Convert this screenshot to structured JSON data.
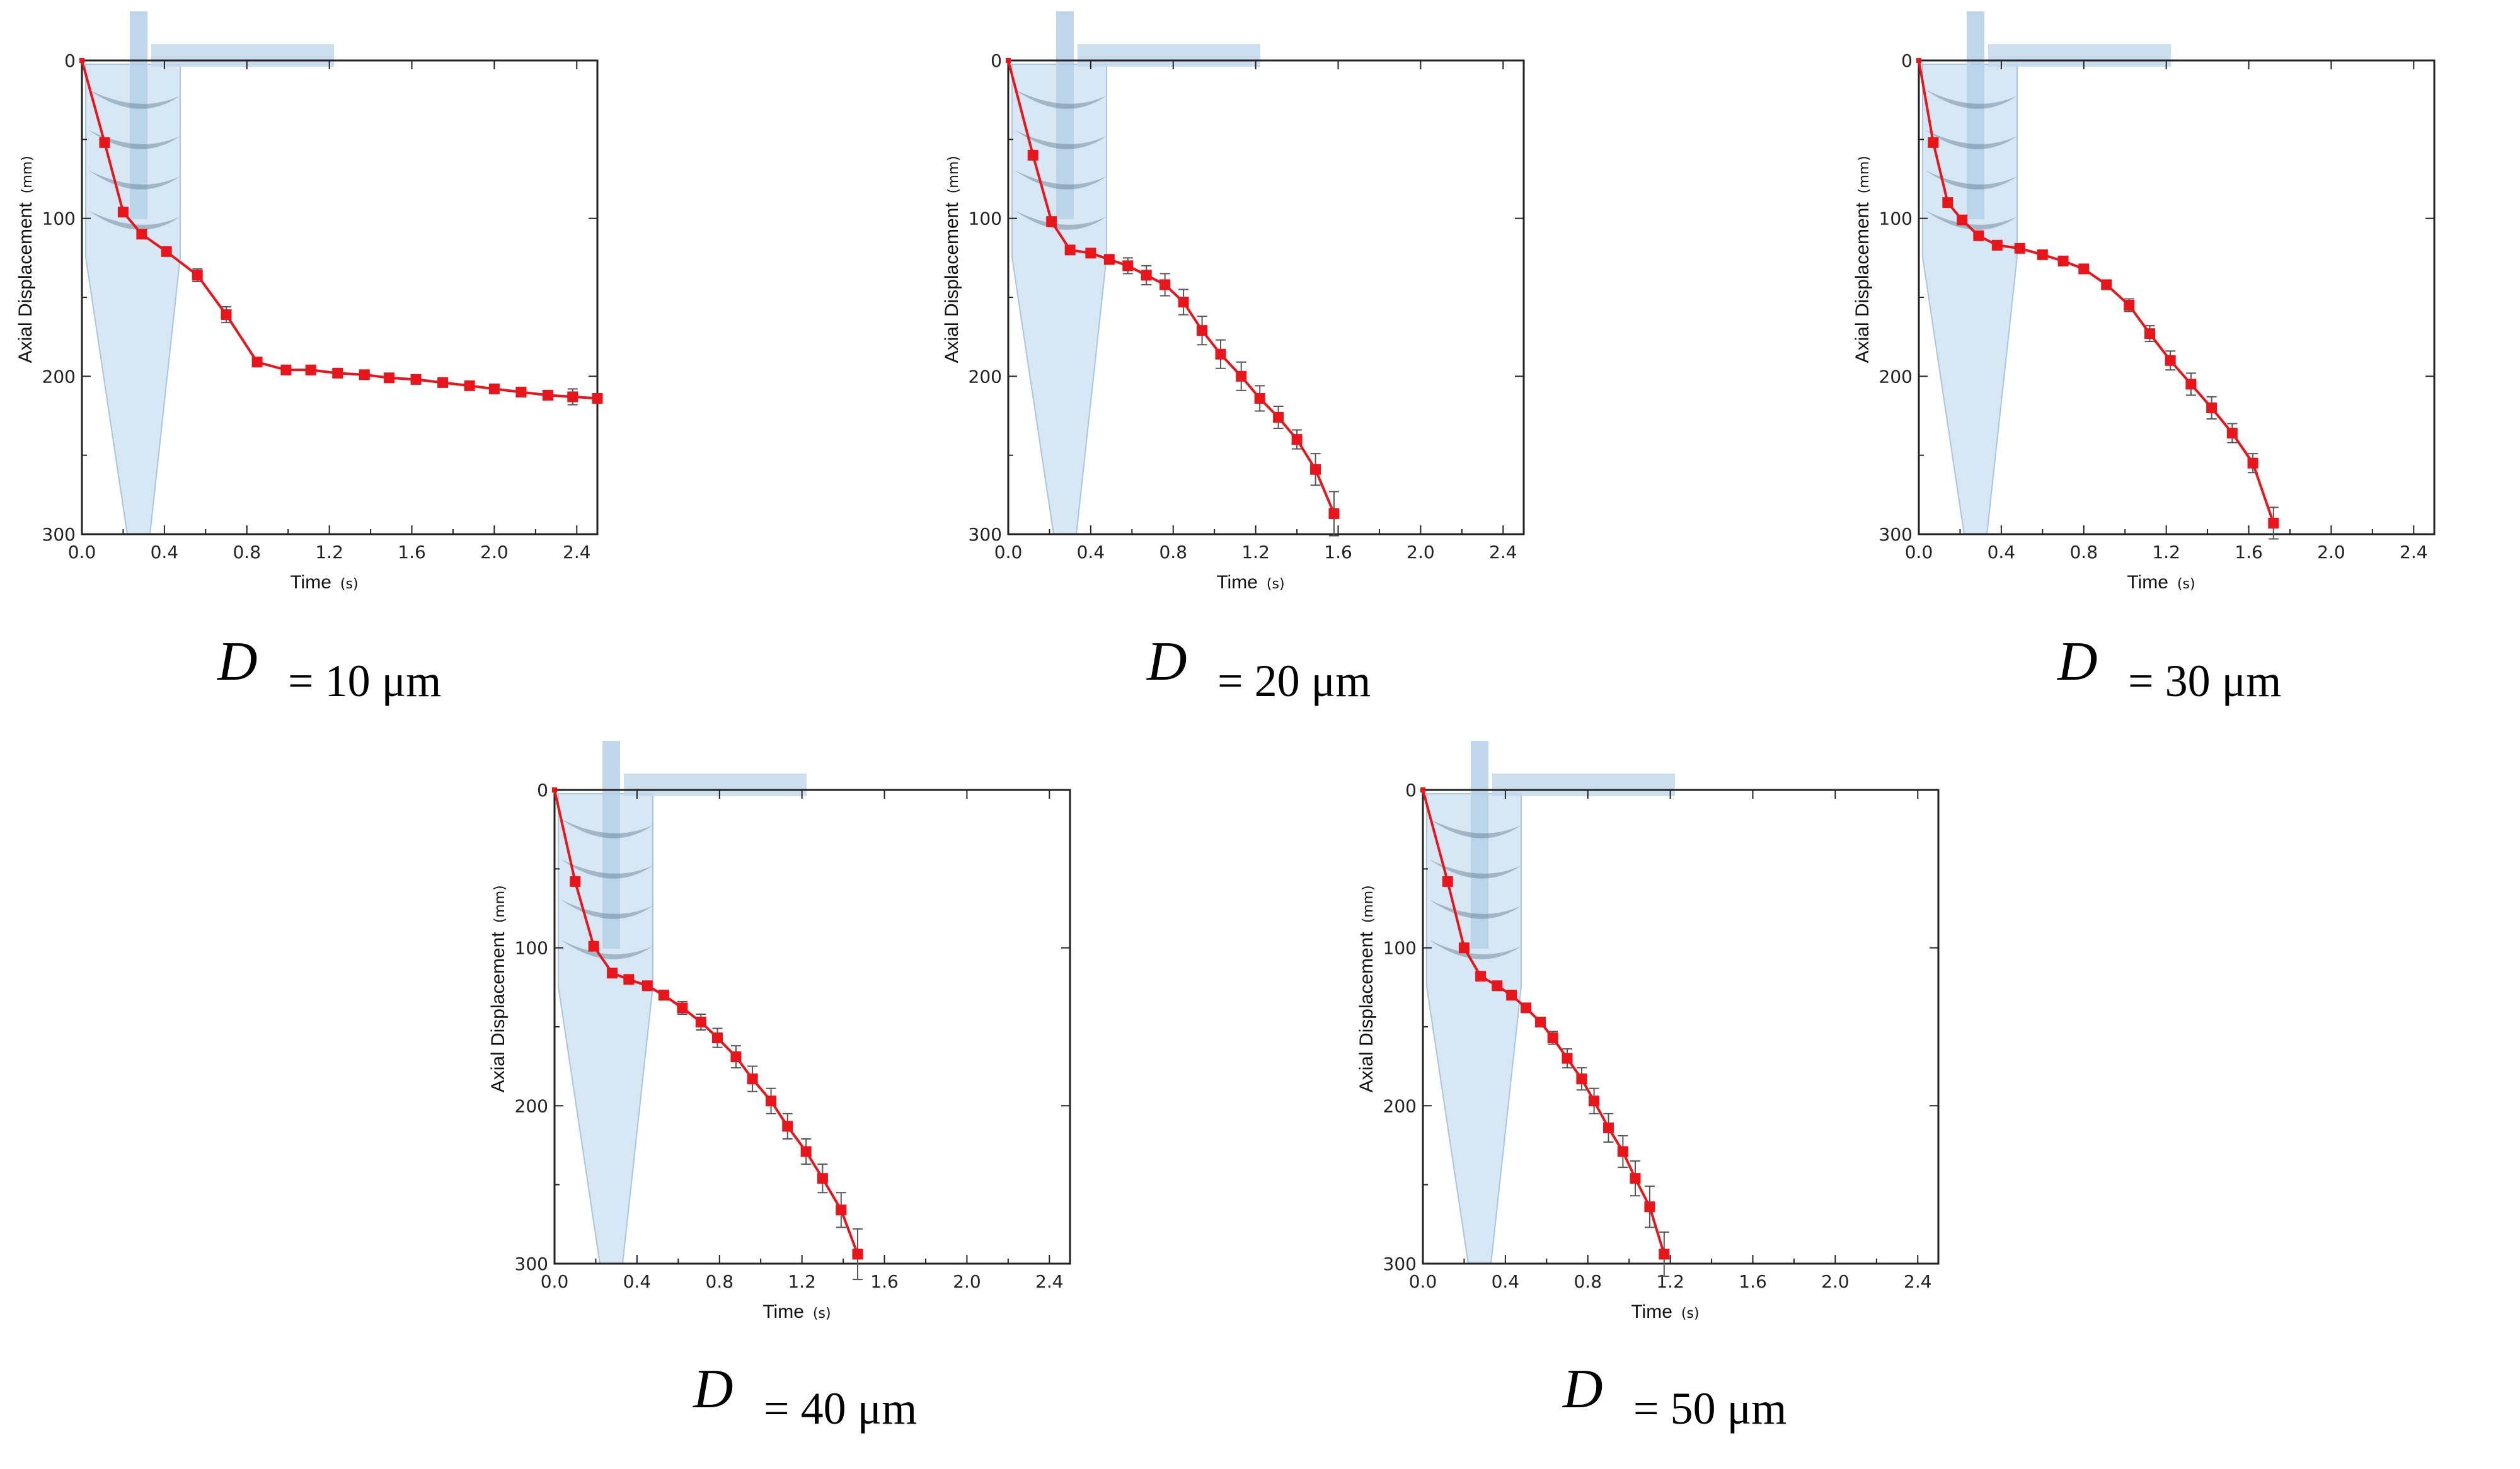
{
  "caption_symbol": "D",
  "chart_data": [
    {
      "type": "line",
      "caption": "= 10 μm",
      "xlabel": "Time",
      "xunit": "(s)",
      "ylabel": "Axial Displacement",
      "yunit": "(mm)",
      "xlim": [
        0,
        2.5
      ],
      "ylim": [
        0,
        300
      ],
      "y_inverted": true,
      "xticks": [
        0,
        0.4,
        0.8,
        1.2,
        1.6,
        2.0,
        2.4
      ],
      "xtick_labels": [
        "0.0",
        "0.4",
        "0.8",
        "1.2",
        "1.6",
        "2.0",
        "2.4"
      ],
      "yticks": [
        0,
        100,
        200,
        300
      ],
      "ytick_labels": [
        "0",
        "100",
        "200",
        "300"
      ],
      "series_color": "#e8161b",
      "x": [
        0,
        0.11,
        0.2,
        0.29,
        0.41,
        0.56,
        0.7,
        0.85,
        0.99,
        1.11,
        1.24,
        1.37,
        1.49,
        1.62,
        1.75,
        1.88,
        2.0,
        2.13,
        2.26,
        2.38,
        2.5
      ],
      "y": [
        0,
        52,
        96,
        110,
        121,
        136,
        161,
        191,
        196,
        196,
        198,
        199,
        201,
        202,
        204,
        206,
        208,
        210,
        212,
        213,
        214
      ],
      "err": [
        0,
        0,
        0,
        0,
        2,
        4,
        5,
        0,
        0,
        0,
        0,
        0,
        0,
        0,
        0,
        0,
        0,
        0,
        0,
        5,
        2
      ]
    },
    {
      "type": "line",
      "caption": "= 20 μm",
      "xlabel": "Time",
      "xunit": "(s)",
      "ylabel": "Axial Displacement",
      "yunit": "(mm)",
      "xlim": [
        0,
        2.5
      ],
      "ylim": [
        0,
        300
      ],
      "y_inverted": true,
      "xticks": [
        0,
        0.4,
        0.8,
        1.2,
        1.6,
        2.0,
        2.4
      ],
      "xtick_labels": [
        "0.0",
        "0.4",
        "0.8",
        "1.2",
        "1.6",
        "2.0",
        "2.4"
      ],
      "yticks": [
        0,
        100,
        200,
        300
      ],
      "ytick_labels": [
        "0",
        "100",
        "200",
        "300"
      ],
      "series_color": "#e8161b",
      "x": [
        0,
        0.12,
        0.21,
        0.3,
        0.4,
        0.49,
        0.58,
        0.67,
        0.76,
        0.85,
        0.94,
        1.03,
        1.13,
        1.22,
        1.31,
        1.4,
        1.49,
        1.58
      ],
      "y": [
        0,
        60,
        102,
        120,
        122,
        126,
        130,
        136,
        142,
        153,
        171,
        186,
        200,
        214,
        226,
        240,
        259,
        287
      ],
      "err": [
        0,
        0,
        0,
        0,
        0,
        3,
        5,
        6,
        7,
        8,
        9,
        9,
        9,
        8,
        7,
        6,
        10,
        14
      ]
    },
    {
      "type": "line",
      "caption": "= 30 μm",
      "xlabel": "Time",
      "xunit": "(s)",
      "ylabel": "Axial Displacement",
      "yunit": "(mm)",
      "xlim": [
        0,
        2.5
      ],
      "ylim": [
        0,
        300
      ],
      "y_inverted": true,
      "xticks": [
        0,
        0.4,
        0.8,
        1.2,
        1.6,
        2.0,
        2.4
      ],
      "xtick_labels": [
        "0.0",
        "0.4",
        "0.8",
        "1.2",
        "1.6",
        "2.0",
        "2.4"
      ],
      "yticks": [
        0,
        100,
        200,
        300
      ],
      "ytick_labels": [
        "0",
        "100",
        "200",
        "300"
      ],
      "series_color": "#e8161b",
      "x": [
        0,
        0.07,
        0.14,
        0.21,
        0.29,
        0.38,
        0.49,
        0.6,
        0.7,
        0.8,
        0.91,
        1.02,
        1.12,
        1.22,
        1.32,
        1.42,
        1.52,
        1.62,
        1.72
      ],
      "y": [
        0,
        52,
        90,
        101,
        111,
        117,
        119,
        123,
        127,
        132,
        142,
        155,
        173,
        190,
        205,
        220,
        236,
        255,
        293
      ],
      "err": [
        0,
        0,
        0,
        0,
        0,
        0,
        0,
        0,
        0,
        0,
        0,
        4,
        5,
        6,
        7,
        7,
        6,
        6,
        10
      ]
    },
    {
      "type": "line",
      "caption": "= 40 μm",
      "xlabel": "Time",
      "xunit": "(s)",
      "ylabel": "Axial Displacement",
      "yunit": "(mm)",
      "xlim": [
        0,
        2.5
      ],
      "ylim": [
        0,
        300
      ],
      "y_inverted": true,
      "xticks": [
        0,
        0.4,
        0.8,
        1.2,
        1.6,
        2.0,
        2.4
      ],
      "xtick_labels": [
        "0.0",
        "0.4",
        "0.8",
        "1.2",
        "1.6",
        "2.0",
        "2.4"
      ],
      "yticks": [
        0,
        100,
        200,
        300
      ],
      "ytick_labels": [
        "0",
        "100",
        "200",
        "300"
      ],
      "series_color": "#e8161b",
      "x": [
        0,
        0.1,
        0.19,
        0.28,
        0.36,
        0.45,
        0.53,
        0.62,
        0.71,
        0.79,
        0.88,
        0.96,
        1.05,
        1.13,
        1.22,
        1.3,
        1.39,
        1.47
      ],
      "y": [
        0,
        58,
        99,
        116,
        120,
        124,
        130,
        138,
        147,
        157,
        169,
        183,
        197,
        213,
        229,
        246,
        266,
        294
      ],
      "err": [
        0,
        0,
        0,
        0,
        0,
        0,
        3,
        4,
        5,
        6,
        7,
        8,
        8,
        8,
        8,
        9,
        11,
        16
      ]
    },
    {
      "type": "line",
      "caption": "= 50 μm",
      "xlabel": "Time",
      "xunit": "(s)",
      "ylabel": "Axial Displacement",
      "yunit": "(mm)",
      "xlim": [
        0,
        2.5
      ],
      "ylim": [
        0,
        300
      ],
      "y_inverted": true,
      "xticks": [
        0,
        0.4,
        0.8,
        1.2,
        1.6,
        2.0,
        2.4
      ],
      "xtick_labels": [
        "0.0",
        "0.4",
        "0.8",
        "1.2",
        "1.6",
        "2.0",
        "2.4"
      ],
      "yticks": [
        0,
        100,
        200,
        300
      ],
      "ytick_labels": [
        "0",
        "100",
        "200",
        "300"
      ],
      "series_color": "#e8161b",
      "x": [
        0,
        0.12,
        0.2,
        0.28,
        0.36,
        0.43,
        0.5,
        0.57,
        0.63,
        0.7,
        0.77,
        0.83,
        0.9,
        0.97,
        1.03,
        1.1,
        1.17
      ],
      "y": [
        0,
        58,
        100,
        118,
        124,
        130,
        138,
        147,
        157,
        170,
        183,
        197,
        214,
        229,
        246,
        264,
        294
      ],
      "err": [
        0,
        0,
        0,
        0,
        0,
        0,
        0,
        3,
        4,
        6,
        7,
        8,
        9,
        10,
        11,
        13,
        14
      ]
    }
  ]
}
